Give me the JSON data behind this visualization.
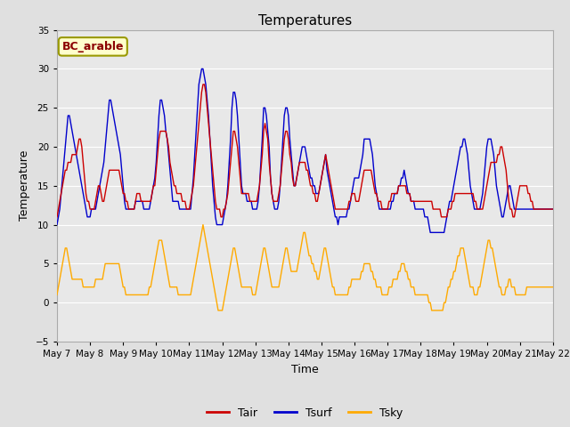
{
  "title": "Temperatures",
  "xlabel": "Time",
  "ylabel": "Temperature",
  "ylim": [
    -5,
    35
  ],
  "xlim": [
    0,
    360
  ],
  "fig_bg": "#e8e8e8",
  "plot_bg": "#e8e8e8",
  "grid_color": "white",
  "tair_color": "#cc0000",
  "tsurf_color": "#0000cc",
  "tsky_color": "#ffaa00",
  "legend_label": "BC_arable",
  "legend_text_color": "#8b0000",
  "legend_box_facecolor": "#ffffcc",
  "legend_box_edgecolor": "#999900",
  "x_tick_labels": [
    "May 7",
    "May 8",
    "May 9",
    "May 10",
    "May 11",
    "May 12",
    "May 13",
    "May 14",
    "May 15",
    "May 16",
    "May 17",
    "May 18",
    "May 19",
    "May 20",
    "May 21",
    "May 22"
  ],
  "x_tick_positions": [
    0,
    24,
    48,
    72,
    96,
    120,
    144,
    168,
    192,
    216,
    240,
    264,
    288,
    312,
    336,
    360
  ],
  "y_ticks": [
    -5,
    0,
    5,
    10,
    15,
    20,
    25,
    30,
    35
  ],
  "n_points": 361,
  "tair_values": [
    11,
    12,
    13,
    14,
    15,
    16,
    17,
    17,
    18,
    18,
    18,
    19,
    19,
    19,
    19,
    20,
    21,
    21,
    20,
    18,
    16,
    14,
    13,
    13,
    12,
    12,
    12,
    12,
    13,
    14,
    15,
    15,
    14,
    13,
    13,
    14,
    15,
    16,
    17,
    17,
    17,
    17,
    17,
    17,
    17,
    17,
    16,
    15,
    14,
    14,
    13,
    13,
    12,
    12,
    12,
    12,
    12,
    13,
    14,
    14,
    14,
    13,
    13,
    13,
    13,
    13,
    13,
    13,
    13,
    14,
    15,
    15,
    17,
    19,
    21,
    22,
    22,
    22,
    22,
    22,
    21,
    20,
    18,
    17,
    16,
    15,
    15,
    14,
    14,
    14,
    14,
    13,
    13,
    13,
    12,
    12,
    12,
    13,
    14,
    15,
    17,
    19,
    21,
    23,
    25,
    27,
    28,
    28,
    27,
    25,
    23,
    21,
    19,
    17,
    15,
    13,
    12,
    12,
    12,
    11,
    11,
    12,
    12,
    13,
    14,
    16,
    18,
    20,
    22,
    22,
    21,
    20,
    18,
    16,
    14,
    14,
    14,
    14,
    14,
    14,
    13,
    13,
    13,
    13,
    13,
    13,
    14,
    15,
    17,
    19,
    22,
    23,
    22,
    21,
    18,
    16,
    14,
    13,
    13,
    13,
    13,
    14,
    15,
    17,
    19,
    21,
    22,
    22,
    21,
    19,
    18,
    16,
    15,
    15,
    16,
    17,
    18,
    18,
    18,
    18,
    18,
    17,
    17,
    16,
    15,
    15,
    14,
    14,
    13,
    13,
    14,
    15,
    16,
    17,
    18,
    19,
    18,
    17,
    16,
    15,
    14,
    13,
    12,
    12,
    12,
    12,
    12,
    12,
    12,
    12,
    12,
    12,
    13,
    13,
    14,
    14,
    14,
    13,
    13,
    13,
    14,
    15,
    16,
    17,
    17,
    17,
    17,
    17,
    17,
    16,
    15,
    14,
    14,
    13,
    13,
    13,
    12,
    12,
    12,
    12,
    12,
    13,
    13,
    14,
    14,
    14,
    14,
    14,
    15,
    15,
    15,
    15,
    15,
    15,
    14,
    14,
    14,
    13,
    13,
    13,
    13,
    13,
    13,
    13,
    13,
    13,
    13,
    13,
    13,
    13,
    13,
    13,
    13,
    12,
    12,
    12,
    12,
    12,
    12,
    11,
    11,
    11,
    11,
    11,
    12,
    12,
    12,
    13,
    13,
    14,
    14,
    14,
    14,
    14,
    14,
    14,
    14,
    14,
    14,
    14,
    14,
    14,
    14,
    13,
    13,
    12,
    12,
    12,
    12,
    12,
    13,
    14,
    15,
    16,
    17,
    18,
    18,
    18,
    18,
    18,
    19,
    19,
    20,
    20,
    19,
    18,
    17,
    15,
    13,
    12,
    12,
    11,
    11,
    12,
    13,
    14,
    15,
    15,
    15,
    15,
    15,
    15,
    14,
    14,
    13,
    13,
    12,
    12,
    12,
    12,
    12,
    12,
    12,
    12,
    12,
    12,
    12,
    12,
    12,
    12,
    12
  ],
  "tsurf_values": [
    10,
    11,
    12,
    14,
    16,
    18,
    20,
    22,
    24,
    24,
    23,
    22,
    21,
    20,
    19,
    18,
    17,
    16,
    15,
    14,
    13,
    12,
    11,
    11,
    11,
    12,
    12,
    12,
    12,
    13,
    14,
    15,
    16,
    17,
    18,
    20,
    22,
    24,
    26,
    26,
    25,
    24,
    23,
    22,
    21,
    20,
    19,
    17,
    15,
    13,
    12,
    12,
    12,
    12,
    12,
    12,
    12,
    13,
    13,
    13,
    13,
    13,
    13,
    12,
    12,
    12,
    12,
    12,
    13,
    14,
    15,
    16,
    18,
    21,
    24,
    26,
    26,
    25,
    24,
    22,
    21,
    19,
    17,
    15,
    13,
    13,
    13,
    13,
    13,
    12,
    12,
    12,
    12,
    12,
    12,
    12,
    12,
    12,
    14,
    16,
    19,
    22,
    25,
    28,
    29,
    30,
    30,
    29,
    28,
    26,
    24,
    21,
    18,
    15,
    13,
    11,
    10,
    10,
    10,
    10,
    10,
    11,
    12,
    13,
    15,
    18,
    21,
    25,
    27,
    27,
    26,
    24,
    21,
    18,
    15,
    14,
    14,
    14,
    13,
    13,
    13,
    13,
    12,
    12,
    12,
    12,
    13,
    15,
    18,
    21,
    25,
    25,
    24,
    22,
    20,
    16,
    14,
    13,
    12,
    12,
    12,
    13,
    15,
    18,
    21,
    24,
    25,
    25,
    24,
    21,
    19,
    17,
    15,
    15,
    16,
    17,
    18,
    19,
    20,
    20,
    20,
    19,
    18,
    17,
    16,
    16,
    15,
    15,
    14,
    14,
    14,
    15,
    16,
    17,
    18,
    19,
    17,
    16,
    15,
    14,
    13,
    12,
    11,
    11,
    10,
    11,
    11,
    11,
    11,
    11,
    11,
    12,
    12,
    13,
    14,
    15,
    16,
    16,
    16,
    16,
    17,
    18,
    19,
    21,
    21,
    21,
    21,
    21,
    20,
    19,
    17,
    15,
    14,
    13,
    12,
    12,
    12,
    12,
    12,
    12,
    12,
    12,
    12,
    13,
    13,
    14,
    14,
    14,
    15,
    15,
    16,
    16,
    17,
    16,
    15,
    14,
    14,
    13,
    13,
    13,
    12,
    12,
    12,
    12,
    12,
    12,
    12,
    11,
    11,
    11,
    10,
    9,
    9,
    9,
    9,
    9,
    9,
    9,
    9,
    9,
    9,
    9,
    10,
    11,
    12,
    13,
    13,
    14,
    15,
    16,
    17,
    18,
    19,
    20,
    20,
    21,
    21,
    20,
    19,
    17,
    15,
    14,
    13,
    12,
    12,
    12,
    12,
    12,
    13,
    14,
    16,
    18,
    20,
    21,
    21,
    21,
    20,
    19,
    17,
    15,
    14,
    13,
    12,
    11,
    11,
    12,
    13,
    14,
    15,
    15,
    14,
    13,
    12,
    12,
    12,
    12,
    12,
    12,
    12,
    12,
    12,
    12,
    12,
    12,
    12,
    12,
    12,
    12,
    12,
    12,
    12,
    12,
    12,
    12,
    12,
    12,
    12,
    12,
    12,
    12,
    12
  ],
  "tsky_values": [
    1,
    2,
    3,
    4,
    5,
    6,
    7,
    7,
    6,
    5,
    4,
    3,
    3,
    3,
    3,
    3,
    3,
    3,
    3,
    2,
    2,
    2,
    2,
    2,
    2,
    2,
    2,
    2,
    3,
    3,
    3,
    3,
    3,
    3,
    4,
    5,
    5,
    5,
    5,
    5,
    5,
    5,
    5,
    5,
    5,
    5,
    4,
    3,
    2,
    2,
    1,
    1,
    1,
    1,
    1,
    1,
    1,
    1,
    1,
    1,
    1,
    1,
    1,
    1,
    1,
    1,
    1,
    2,
    2,
    3,
    4,
    5,
    6,
    7,
    8,
    8,
    8,
    7,
    6,
    5,
    4,
    3,
    2,
    2,
    2,
    2,
    2,
    2,
    1,
    1,
    1,
    1,
    1,
    1,
    1,
    1,
    1,
    1,
    2,
    3,
    4,
    5,
    6,
    7,
    8,
    9,
    10,
    9,
    8,
    7,
    6,
    5,
    4,
    3,
    2,
    1,
    0,
    -1,
    -1,
    -1,
    -1,
    0,
    1,
    2,
    3,
    4,
    5,
    6,
    7,
    7,
    6,
    5,
    4,
    3,
    2,
    2,
    2,
    2,
    2,
    2,
    2,
    2,
    1,
    1,
    1,
    2,
    3,
    4,
    5,
    6,
    7,
    7,
    6,
    5,
    4,
    3,
    2,
    2,
    2,
    2,
    2,
    2,
    3,
    4,
    5,
    6,
    7,
    7,
    6,
    5,
    4,
    4,
    4,
    4,
    4,
    5,
    6,
    7,
    8,
    9,
    9,
    8,
    7,
    6,
    6,
    5,
    5,
    4,
    4,
    3,
    3,
    4,
    5,
    6,
    7,
    7,
    6,
    5,
    4,
    3,
    2,
    2,
    1,
    1,
    1,
    1,
    1,
    1,
    1,
    1,
    1,
    1,
    2,
    2,
    3,
    3,
    3,
    3,
    3,
    3,
    3,
    4,
    4,
    5,
    5,
    5,
    5,
    5,
    4,
    4,
    3,
    3,
    2,
    2,
    2,
    2,
    1,
    1,
    1,
    1,
    1,
    2,
    2,
    2,
    3,
    3,
    3,
    3,
    4,
    4,
    5,
    5,
    5,
    4,
    4,
    3,
    3,
    2,
    2,
    2,
    1,
    1,
    1,
    1,
    1,
    1,
    1,
    1,
    1,
    1,
    0,
    0,
    -1,
    -1,
    -1,
    -1,
    -1,
    -1,
    -1,
    -1,
    -1,
    0,
    0,
    1,
    2,
    2,
    3,
    3,
    4,
    4,
    5,
    6,
    6,
    7,
    7,
    7,
    6,
    5,
    4,
    3,
    2,
    2,
    2,
    1,
    1,
    1,
    2,
    2,
    3,
    4,
    5,
    6,
    7,
    8,
    8,
    7,
    7,
    6,
    5,
    4,
    3,
    2,
    2,
    1,
    1,
    1,
    2,
    2,
    3,
    3,
    2,
    2,
    2,
    1,
    1,
    1,
    1,
    1,
    1,
    1,
    1,
    2,
    2,
    2,
    2,
    2,
    2,
    2,
    2,
    2,
    2,
    2,
    2,
    2,
    2,
    2,
    2,
    2,
    2,
    2,
    2
  ]
}
